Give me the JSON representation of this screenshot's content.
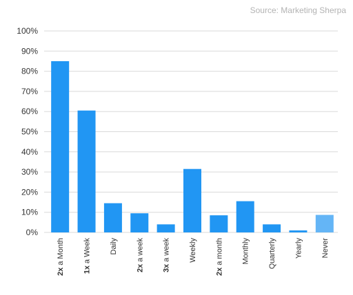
{
  "source_text": "Source: Marketing Sherpa",
  "colors": {
    "bar": "#2196f3",
    "bar_highlight": "#64b5f6",
    "grid": "#d9d9d9"
  },
  "chart_data": {
    "type": "bar",
    "categories": [
      {
        "bold": "2x",
        "rest": " a Month"
      },
      {
        "bold": "1x",
        "rest": " a Week"
      },
      {
        "bold": "",
        "rest": "Daily"
      },
      {
        "bold": "2x",
        "rest": " a week"
      },
      {
        "bold": "3x",
        "rest": " a week"
      },
      {
        "bold": "",
        "rest": "Weekly"
      },
      {
        "bold": "2x",
        "rest": " a month"
      },
      {
        "bold": "",
        "rest": "Monthly"
      },
      {
        "bold": "",
        "rest": "Quarterly"
      },
      {
        "bold": "",
        "rest": "Yearly"
      },
      {
        "bold": "",
        "rest": "Never"
      }
    ],
    "values": [
      85,
      60.5,
      14.5,
      9.5,
      4,
      31.5,
      8.5,
      15.5,
      4,
      1,
      8.7
    ],
    "highlight_index": 10,
    "y_ticks": [
      "0%",
      "10%",
      "20%",
      "30%",
      "40%",
      "50%",
      "60%",
      "70%",
      "80%",
      "90%",
      "100%"
    ],
    "ylim": [
      0,
      100
    ],
    "grid": true,
    "legend": "none",
    "title": "",
    "xlabel": "",
    "ylabel": ""
  }
}
